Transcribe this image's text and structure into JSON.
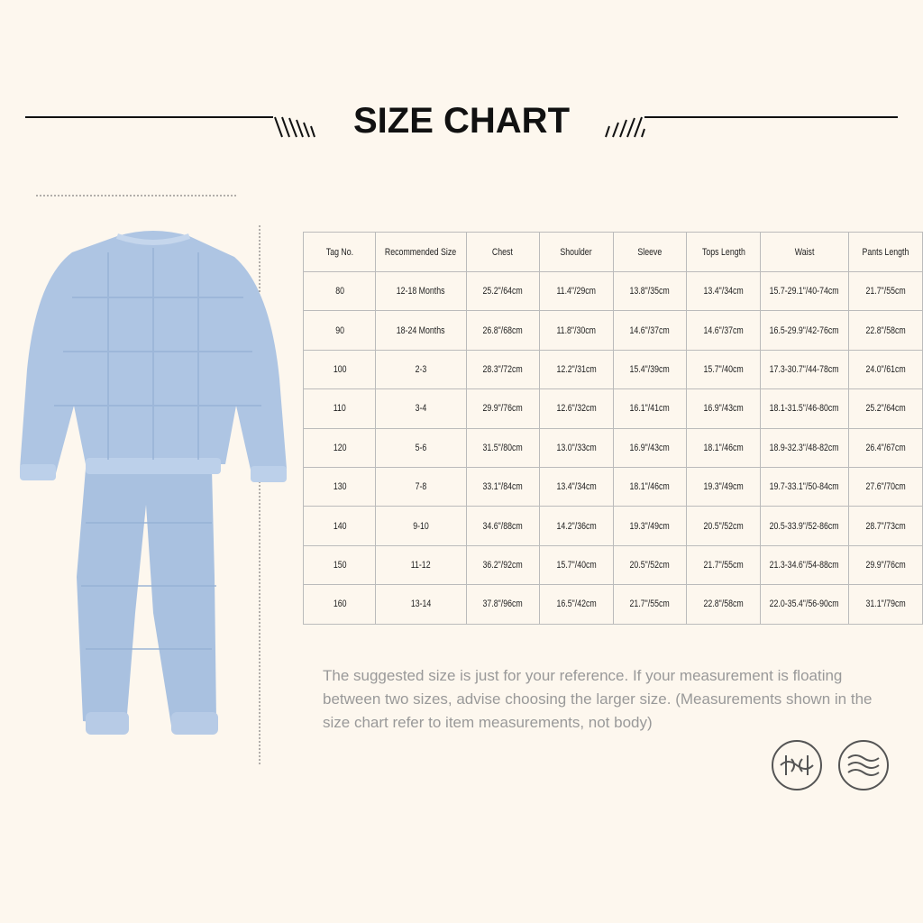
{
  "header": {
    "title": "SIZE CHART"
  },
  "table": {
    "columns": [
      "Tag No.",
      "Recommended Size",
      "Chest",
      "Shoulder",
      "Sleeve",
      "Tops Length",
      "Waist",
      "Pants Length"
    ],
    "rows": [
      [
        "80",
        "12-18 Months",
        "25.2\"/64cm",
        "11.4\"/29cm",
        "13.8\"/35cm",
        "13.4\"/34cm",
        "15.7-29.1\"/40-74cm",
        "21.7\"/55cm"
      ],
      [
        "90",
        "18-24 Months",
        "26.8\"/68cm",
        "11.8\"/30cm",
        "14.6\"/37cm",
        "14.6\"/37cm",
        "16.5-29.9\"/42-76cm",
        "22.8\"/58cm"
      ],
      [
        "100",
        "2-3",
        "28.3\"/72cm",
        "12.2\"/31cm",
        "15.4\"/39cm",
        "15.7\"/40cm",
        "17.3-30.7\"/44-78cm",
        "24.0\"/61cm"
      ],
      [
        "110",
        "3-4",
        "29.9\"/76cm",
        "12.6\"/32cm",
        "16.1\"/41cm",
        "16.9\"/43cm",
        "18.1-31.5\"/46-80cm",
        "25.2\"/64cm"
      ],
      [
        "120",
        "5-6",
        "31.5\"/80cm",
        "13.0\"/33cm",
        "16.9\"/43cm",
        "18.1\"/46cm",
        "18.9-32.3\"/48-82cm",
        "26.4\"/67cm"
      ],
      [
        "130",
        "7-8",
        "33.1\"/84cm",
        "13.4\"/34cm",
        "18.1\"/46cm",
        "19.3\"/49cm",
        "19.7-33.1\"/50-84cm",
        "27.6\"/70cm"
      ],
      [
        "140",
        "9-10",
        "34.6\"/88cm",
        "14.2\"/36cm",
        "19.3\"/49cm",
        "20.5\"/52cm",
        "20.5-33.9\"/52-86cm",
        "28.7\"/73cm"
      ],
      [
        "150",
        "11-12",
        "36.2\"/92cm",
        "15.7\"/40cm",
        "20.5\"/52cm",
        "21.7\"/55cm",
        "21.3-34.6\"/54-88cm",
        "29.9\"/76cm"
      ],
      [
        "160",
        "13-14",
        "37.8\"/96cm",
        "16.5\"/42cm",
        "21.7\"/55cm",
        "22.8\"/58cm",
        "22.0-35.4\"/56-90cm",
        "31.1\"/79cm"
      ]
    ]
  },
  "note": "The suggested size is just for your reference. If your measurement is floating between two sizes, advise choosing the larger size. (Measurements shown in the size chart refer to item measurements, not body)"
}
